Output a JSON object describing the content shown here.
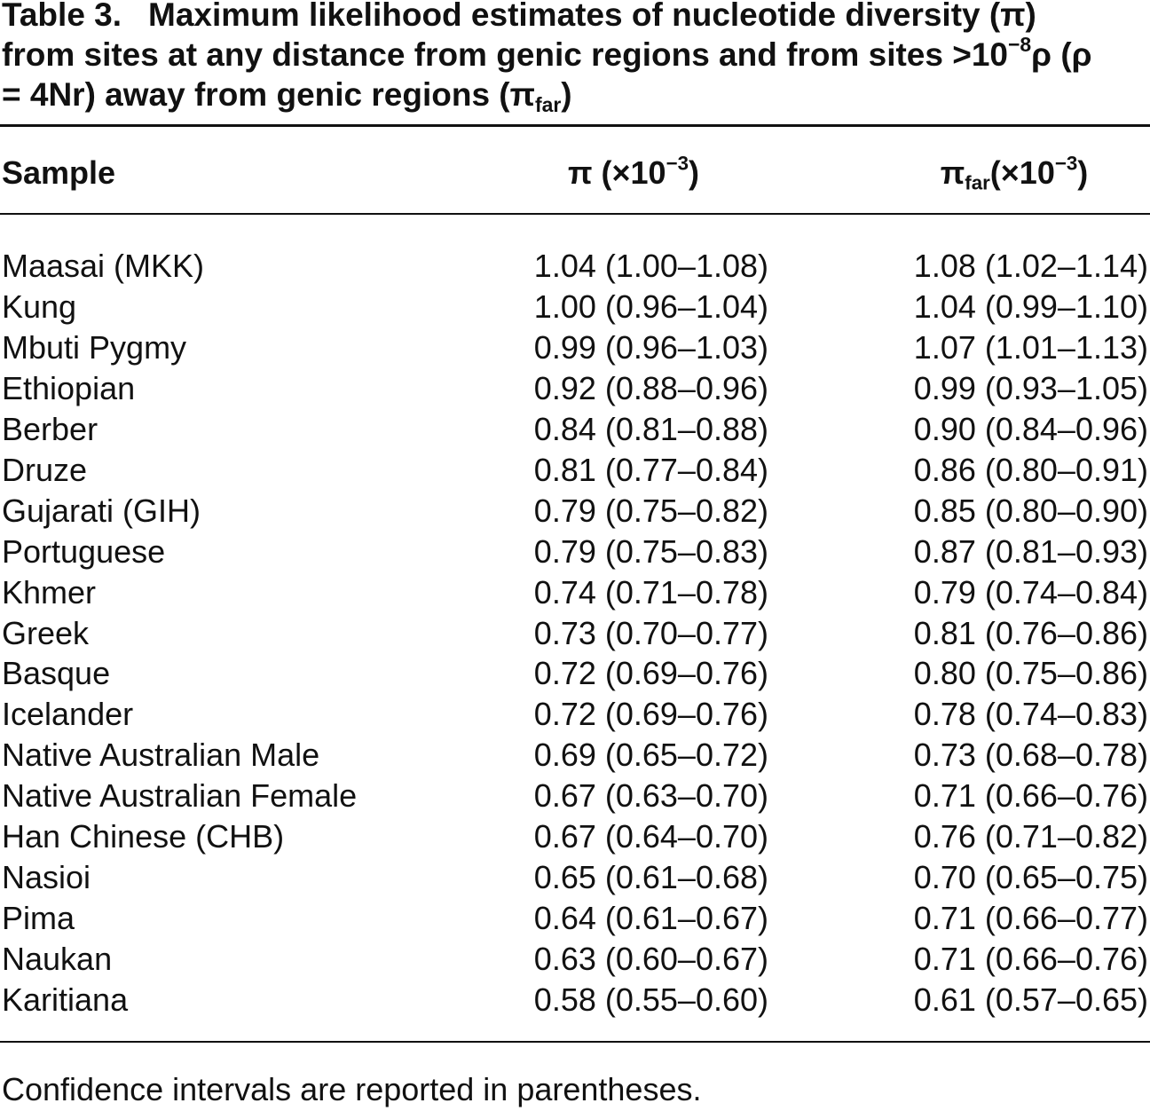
{
  "caption": {
    "label": "Table 3.",
    "segments": [
      "Maximum likelihood estimates of nucleotide diversity (π) from sites at any distance from genic regions and from sites >10",
      "−8",
      "ρ (ρ = 4Nr) away from genic regions (π",
      "far",
      ")"
    ]
  },
  "table": {
    "header": {
      "sample": "Sample",
      "pi": [
        "π (×10",
        "−3",
        ")"
      ],
      "pi_far": [
        "π",
        "far",
        "(×10",
        "−3",
        ")"
      ]
    },
    "rows": [
      [
        "Maasai (MKK)",
        "1.04 (1.00–1.08)",
        "1.08 (1.02–1.14)"
      ],
      [
        "Kung",
        "1.00 (0.96–1.04)",
        "1.04 (0.99–1.10)"
      ],
      [
        "Mbuti Pygmy",
        "0.99 (0.96–1.03)",
        "1.07 (1.01–1.13)"
      ],
      [
        "Ethiopian",
        "0.92 (0.88–0.96)",
        "0.99 (0.93–1.05)"
      ],
      [
        "Berber",
        "0.84 (0.81–0.88)",
        "0.90 (0.84–0.96)"
      ],
      [
        "Druze",
        "0.81 (0.77–0.84)",
        "0.86 (0.80–0.91)"
      ],
      [
        "Gujarati (GIH)",
        "0.79 (0.75–0.82)",
        "0.85 (0.80–0.90)"
      ],
      [
        "Portuguese",
        "0.79 (0.75–0.83)",
        "0.87 (0.81–0.93)"
      ],
      [
        "Khmer",
        "0.74 (0.71–0.78)",
        "0.79 (0.74–0.84)"
      ],
      [
        "Greek",
        "0.73 (0.70–0.77)",
        "0.81 (0.76–0.86)"
      ],
      [
        "Basque",
        "0.72 (0.69–0.76)",
        "0.80 (0.75–0.86)"
      ],
      [
        "Icelander",
        "0.72 (0.69–0.76)",
        "0.78 (0.74–0.83)"
      ],
      [
        "Native Australian Male",
        "0.69 (0.65–0.72)",
        "0.73 (0.68–0.78)"
      ],
      [
        "Native Australian Female",
        "0.67 (0.63–0.70)",
        "0.71 (0.66–0.76)"
      ],
      [
        "Han Chinese (CHB)",
        "0.67 (0.64–0.70)",
        "0.76 (0.71–0.82)"
      ],
      [
        "Nasioi",
        "0.65 (0.61–0.68)",
        "0.70 (0.65–0.75)"
      ],
      [
        "Pima",
        "0.64 (0.61–0.67)",
        "0.71 (0.66–0.77)"
      ],
      [
        "Naukan",
        "0.63 (0.60–0.67)",
        "0.71 (0.66–0.76)"
      ],
      [
        "Karitiana",
        "0.58 (0.55–0.60)",
        "0.61 (0.57–0.65)"
      ]
    ]
  },
  "footnote": "Confidence intervals are reported in parentheses."
}
